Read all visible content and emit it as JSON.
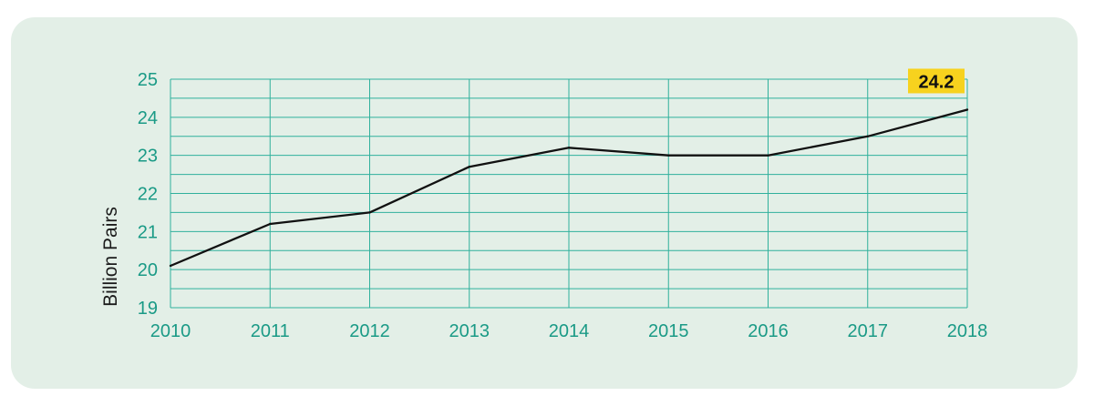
{
  "chart_data": {
    "type": "line",
    "x": [
      2010,
      2011,
      2012,
      2013,
      2014,
      2015,
      2016,
      2017,
      2018
    ],
    "series": [
      {
        "values": [
          20.1,
          21.2,
          21.5,
          22.7,
          23.2,
          23.0,
          23.0,
          23.5,
          24.2
        ]
      }
    ],
    "xticks": [
      "2010",
      "2011",
      "2012",
      "2013",
      "2014",
      "2015",
      "2016",
      "2017",
      "2018"
    ],
    "yticks": [
      "19",
      "20",
      "21",
      "22",
      "23",
      "24",
      "25"
    ],
    "ylabel": "Billion Pairs",
    "xlabel": "",
    "title": "",
    "ylim": [
      19,
      25
    ],
    "xlim": [
      2010,
      2018
    ],
    "minor_y_step": 0.5,
    "grid": true,
    "annotation": {
      "x": 2018,
      "y": 24.2,
      "text": "24.2"
    },
    "colors": {
      "background": "#e3efe7",
      "grid": "#2fb09c",
      "ticks": "#1a9a86",
      "line": "#111111",
      "callout": "#f7d21e"
    }
  }
}
